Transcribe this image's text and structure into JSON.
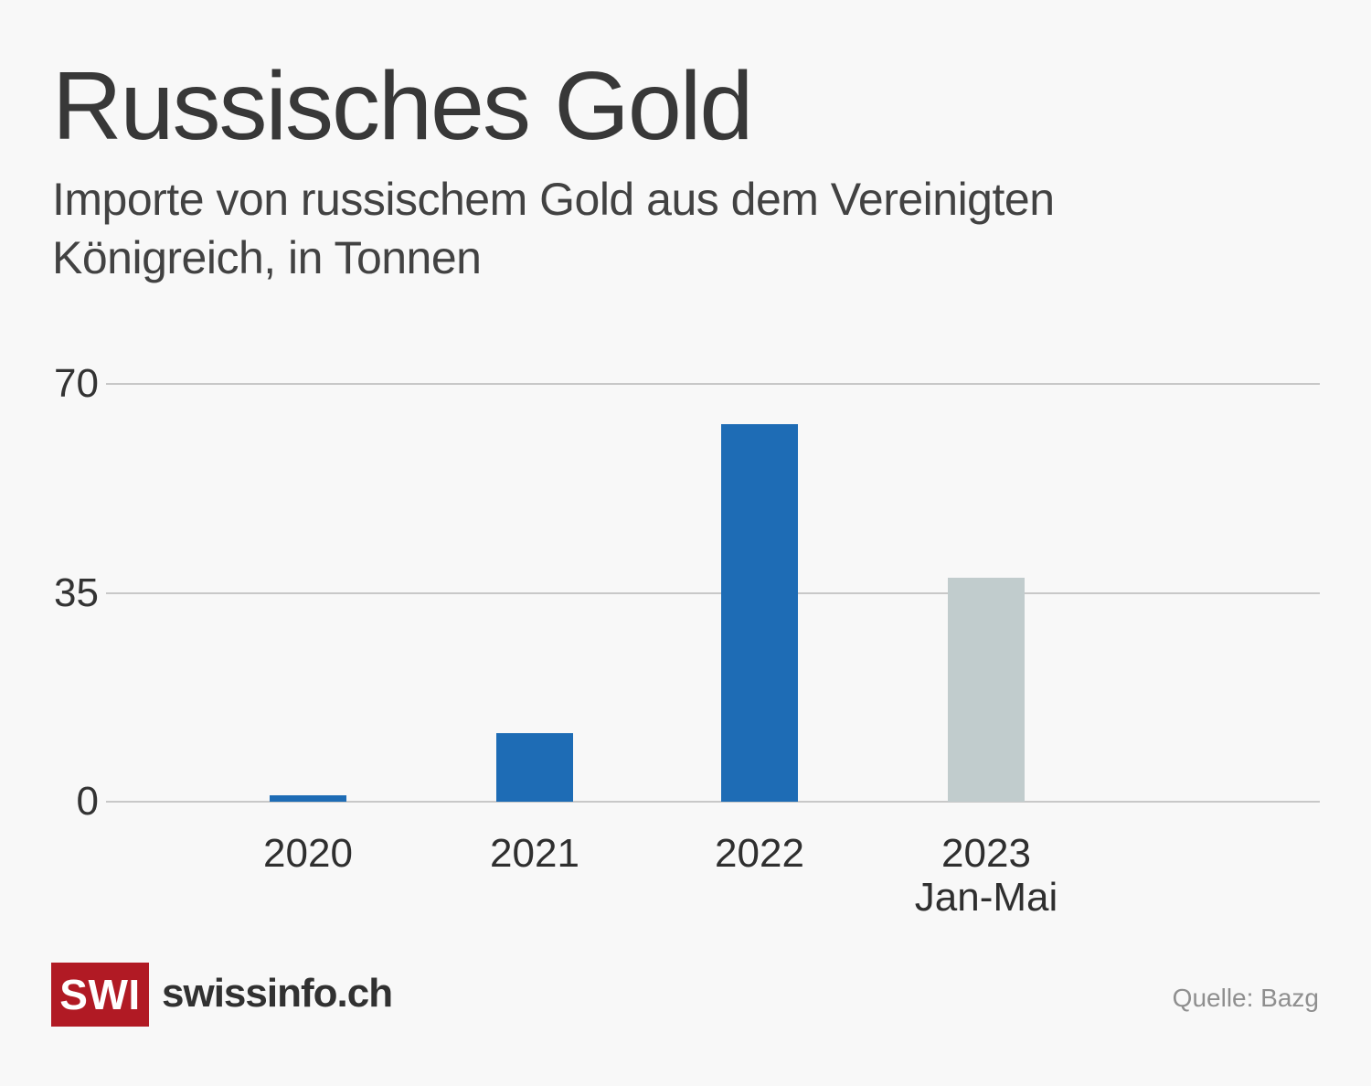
{
  "page": {
    "background_color": "#f8f8f8",
    "title": "Russisches Gold",
    "subtitle_line1": "Importe von russischem Gold aus dem Vereinigten",
    "subtitle_line2": "Königreich, in Tonnen",
    "source": "Quelle: Bazg"
  },
  "branding": {
    "logo_text": "SWI",
    "logo_color": "#b11a24",
    "site_name": "swissinfo.ch"
  },
  "chart_data": {
    "type": "bar",
    "title": "Russisches Gold",
    "subtitle": "Importe von russischem Gold aus dem Vereinigten Königreich, in Tonnen",
    "unit": "Tonnen",
    "categories": [
      "2020",
      "2021 ",
      "2022  ",
      "2023\nJan-Mai"
    ],
    "category_names": [
      "2020",
      "2021",
      "2022",
      "2023 Jan-Mai"
    ],
    "values": [
      1.1,
      11.5,
      63.3,
      37.5
    ],
    "bar_colors": [
      "#1e6cb5",
      "#1e6cb5",
      "#1e6cb5",
      "#c1cccd"
    ],
    "accent_color": "#1e6cb5",
    "muted_bar_color": "#c1cccd",
    "yticks": [
      0,
      35,
      70
    ],
    "ylim": [
      0,
      70
    ],
    "xlabel": "",
    "ylabel": "",
    "grid": true,
    "gridline_color": "#c8c8c8",
    "legend": "none",
    "source": "Quelle: Bazg"
  }
}
